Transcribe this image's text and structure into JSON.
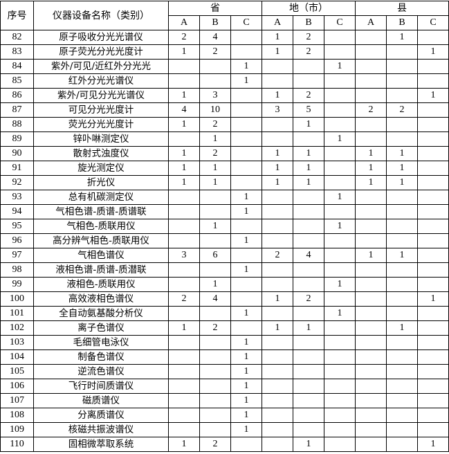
{
  "table": {
    "header": {
      "index": "序号",
      "name": "仪器设备名称（类别）",
      "groups": [
        {
          "name": "省",
          "columns": [
            "A",
            "B",
            "C"
          ]
        },
        {
          "name": "地（市）",
          "columns": [
            "A",
            "B",
            "C"
          ]
        },
        {
          "name": "县",
          "columns": [
            "A",
            "B",
            "C"
          ]
        }
      ]
    },
    "rows": [
      [
        "82",
        "原子吸收分光光谱仪",
        2,
        4,
        null,
        1,
        2,
        null,
        null,
        1,
        null
      ],
      [
        "83",
        "原子荧光分光光度计",
        1,
        2,
        null,
        1,
        2,
        null,
        null,
        null,
        1
      ],
      [
        "84",
        "紫外/可见/近红外分光光",
        null,
        null,
        1,
        null,
        null,
        1,
        null,
        null,
        null
      ],
      [
        "85",
        "红外分光光谱仪",
        null,
        null,
        1,
        null,
        null,
        null,
        null,
        null,
        null
      ],
      [
        "86",
        "紫外/可见分光光谱仪",
        1,
        3,
        null,
        1,
        2,
        null,
        null,
        null,
        1
      ],
      [
        "87",
        "可见分光光度计",
        4,
        10,
        null,
        3,
        5,
        null,
        2,
        2,
        null
      ],
      [
        "88",
        "荧光分光光度计",
        1,
        2,
        null,
        null,
        1,
        null,
        null,
        null,
        null
      ],
      [
        "89",
        "锌卟啉测定仪",
        null,
        1,
        null,
        null,
        null,
        1,
        null,
        null,
        null
      ],
      [
        "90",
        "散射式浊度仪",
        1,
        2,
        null,
        1,
        1,
        null,
        1,
        1,
        null
      ],
      [
        "91",
        "旋光测定仪",
        1,
        1,
        null,
        1,
        1,
        null,
        1,
        1,
        null
      ],
      [
        "92",
        "折光仪",
        1,
        1,
        null,
        1,
        1,
        null,
        1,
        1,
        null
      ],
      [
        "93",
        "总有机碳测定仪",
        null,
        null,
        1,
        null,
        null,
        1,
        null,
        null,
        null
      ],
      [
        "94",
        "气相色谱-质谱-质谱联",
        null,
        null,
        1,
        null,
        null,
        null,
        null,
        null,
        null
      ],
      [
        "95",
        "气相色-质联用仪",
        null,
        1,
        null,
        null,
        null,
        1,
        null,
        null,
        null
      ],
      [
        "96",
        "高分辨气相色-质联用仪",
        null,
        null,
        1,
        null,
        null,
        null,
        null,
        null,
        null
      ],
      [
        "97",
        "气相色谱仪",
        3,
        6,
        null,
        2,
        4,
        null,
        1,
        1,
        null
      ],
      [
        "98",
        "液相色谱-质谱-质潜联",
        null,
        null,
        1,
        null,
        null,
        null,
        null,
        null,
        null
      ],
      [
        "99",
        "液相色-质联用仪",
        null,
        1,
        null,
        null,
        null,
        1,
        null,
        null,
        null
      ],
      [
        "100",
        "高效液相色谱仪",
        2,
        4,
        null,
        1,
        2,
        null,
        null,
        null,
        1
      ],
      [
        "101",
        "全自动氨基酸分析仪",
        null,
        null,
        1,
        null,
        null,
        1,
        null,
        null,
        null
      ],
      [
        "102",
        "离子色谱仪",
        1,
        2,
        null,
        1,
        1,
        null,
        null,
        1,
        null
      ],
      [
        "103",
        "毛细管电泳仪",
        null,
        null,
        1,
        null,
        null,
        null,
        null,
        null,
        null
      ],
      [
        "104",
        "制备色谱仪",
        null,
        null,
        1,
        null,
        null,
        null,
        null,
        null,
        null
      ],
      [
        "105",
        "逆流色谱仪",
        null,
        null,
        1,
        null,
        null,
        null,
        null,
        null,
        null
      ],
      [
        "106",
        "飞行时间质谱仪",
        null,
        null,
        1,
        null,
        null,
        null,
        null,
        null,
        null
      ],
      [
        "107",
        "磁质谱仪",
        null,
        null,
        1,
        null,
        null,
        null,
        null,
        null,
        null
      ],
      [
        "108",
        "分离质谱仪",
        null,
        null,
        1,
        null,
        null,
        null,
        null,
        null,
        null
      ],
      [
        "109",
        "核磁共振波谱仪",
        null,
        null,
        1,
        null,
        null,
        null,
        null,
        null,
        null
      ],
      [
        "110",
        "固相微萃取系统",
        1,
        2,
        null,
        null,
        1,
        null,
        null,
        null,
        1
      ]
    ]
  }
}
